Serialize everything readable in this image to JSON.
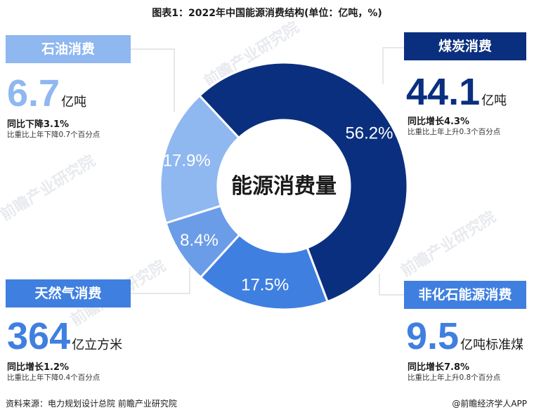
{
  "title": "图表1：2022年中国能源消费结构(单位：亿吨，%)",
  "colors": {
    "coal": "#0b2f7f",
    "non_fossil": "#3f7fe0",
    "gas": "#6a9ce8",
    "oil": "#8fb7f0",
    "oil_text": "#8fb7f0",
    "gas_text": "#3f7fe0",
    "coal_text": "#0b2f7f",
    "nonfossil_text": "#3f7fe0"
  },
  "center_label": "能源消费量",
  "panels": {
    "oil": {
      "name": "石油消费",
      "value": "6.7",
      "unit": "亿吨",
      "yoy": "同比下降3.1%",
      "share_change": "比重比上年下降0.7个百分点"
    },
    "coal": {
      "name": "煤炭消费",
      "value": "44.1",
      "unit": "亿吨",
      "yoy": "同比增长4.3%",
      "share_change": "比重比上年上升0.3个百分点"
    },
    "gas": {
      "name": "天然气消费",
      "value": "364",
      "unit": "亿立方米",
      "yoy": "同比增长1.2%",
      "share_change": "比重比上年下降0.4个百分点"
    },
    "non_fossil": {
      "name": "非化石能源消费",
      "value": "9.5",
      "unit": "亿吨标准煤",
      "yoy": "同比增长7.8%",
      "share_change": "比重比上年上升0.8个百分点"
    }
  },
  "chart_data": {
    "type": "pie",
    "categories": [
      "煤炭消费",
      "非化石能源消费",
      "天然气消费",
      "石油消费"
    ],
    "values": [
      56.2,
      17.5,
      8.4,
      17.9
    ],
    "value_labels": [
      "56.2%",
      "17.5%",
      "8.4%",
      "17.9%"
    ],
    "title": "图表1：2022年中国能源消费结构(单位：亿吨，%)"
  },
  "footer": {
    "source": "资料来源：电力规划设计总院 前瞻产业研究院",
    "brand": "@前瞻经济学人APP"
  },
  "watermark": "前瞻产业研究院"
}
